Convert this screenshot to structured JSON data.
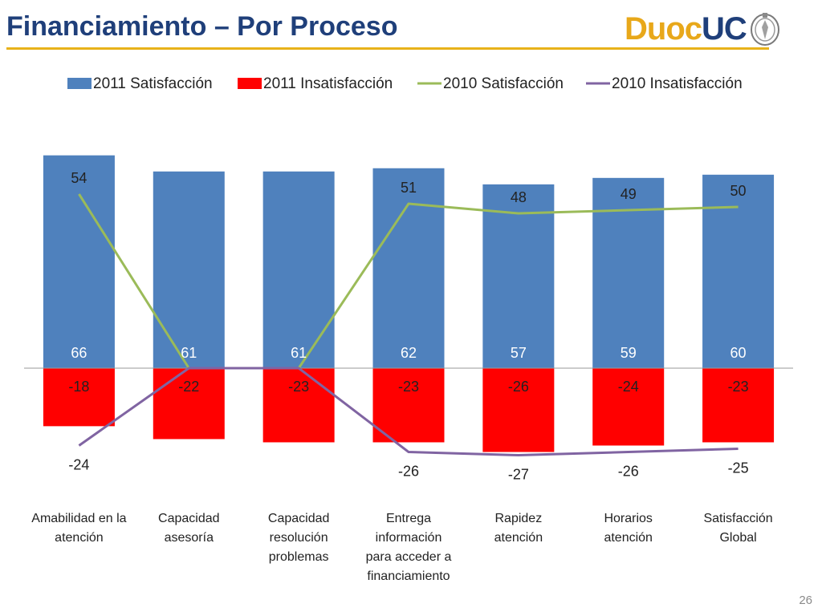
{
  "slide": {
    "title": "Financiamiento – Por Proceso",
    "page_number": "26"
  },
  "logo": {
    "brand_text_1": "Duoc",
    "brand_text_2": "UC",
    "color_1": "#e8a81a",
    "color_2": "#1f3f7a"
  },
  "chart_data": {
    "type": "bar",
    "categories": [
      "Amabilidad en la atención",
      "Capacidad asesoría",
      "Capacidad resolución problemas",
      "Entrega información para acceder a financiamiento",
      "Rapidez atención",
      "Horarios atención",
      "Satisfacción Global"
    ],
    "series": [
      {
        "name": "2011 Satisfacción",
        "kind": "bar",
        "color": "#4f81bd",
        "values": [
          66,
          61,
          61,
          62,
          57,
          59,
          60
        ]
      },
      {
        "name": "2011 Insatisfacción",
        "kind": "bar",
        "color": "#ff0000",
        "values": [
          -18,
          -22,
          -23,
          -23,
          -26,
          -24,
          -23
        ]
      },
      {
        "name": "2010 Satisfacción",
        "kind": "line",
        "color": "#9bbb59",
        "values": [
          54,
          0,
          0,
          51,
          48,
          49,
          50
        ],
        "labels": [
          "54",
          "",
          "",
          "51",
          "48",
          "49",
          "50"
        ]
      },
      {
        "name": "2010 Insatisfacción",
        "kind": "line",
        "color": "#8064a2",
        "values": [
          -24,
          0,
          0,
          -26,
          -27,
          -26,
          -25
        ],
        "labels": [
          "-24",
          "",
          "",
          "-26",
          "-27",
          "-26",
          "-25"
        ]
      }
    ],
    "legend_position": "top",
    "grid": false
  }
}
